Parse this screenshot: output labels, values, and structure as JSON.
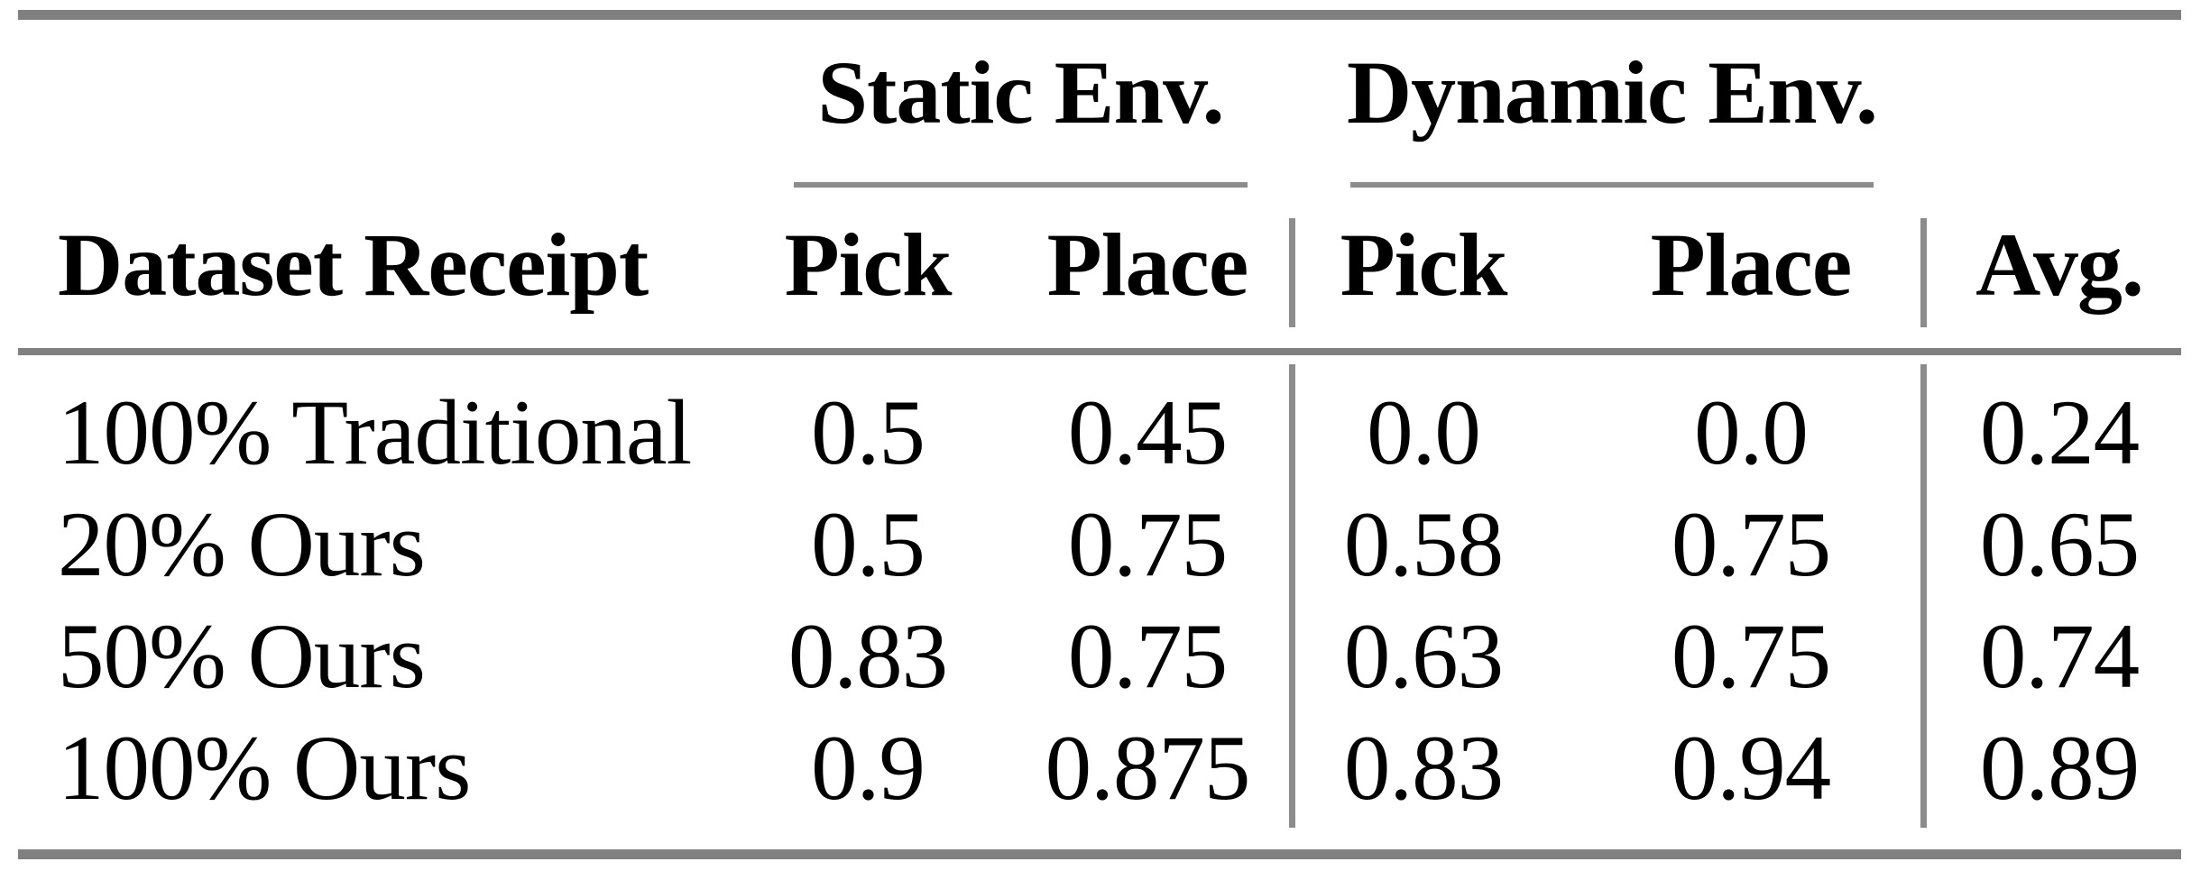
{
  "table": {
    "column_groups": [
      {
        "label": "Static Env."
      },
      {
        "label": "Dynamic Env."
      }
    ],
    "headers": {
      "dataset": "Dataset Receipt",
      "static_pick": "Pick",
      "static_place": "Place",
      "dynamic_pick": "Pick",
      "dynamic_place": "Place",
      "avg": "Avg."
    },
    "rows": [
      {
        "label": "100% Traditional",
        "static_pick": "0.5",
        "static_place": "0.45",
        "dynamic_pick": "0.0",
        "dynamic_place": "0.0",
        "avg": "0.24"
      },
      {
        "label": "20% Ours",
        "static_pick": "0.5",
        "static_place": "0.75",
        "dynamic_pick": "0.58",
        "dynamic_place": "0.75",
        "avg": "0.65"
      },
      {
        "label": "50% Ours",
        "static_pick": "0.83",
        "static_place": "0.75",
        "dynamic_pick": "0.63",
        "dynamic_place": "0.75",
        "avg": "0.74"
      },
      {
        "label": "100% Ours",
        "static_pick": "0.9",
        "static_place": "0.875",
        "dynamic_pick": "0.83",
        "dynamic_place": "0.94",
        "avg": "0.89"
      }
    ],
    "colors": {
      "rule_gray": "#808080",
      "text": "#000000",
      "background": "#ffffff"
    }
  },
  "chart_data": {
    "type": "table",
    "title": "",
    "column_groups": [
      "Static Env.",
      "Dynamic Env."
    ],
    "columns": [
      "Dataset Receipt",
      "Static Env. Pick",
      "Static Env. Place",
      "Dynamic Env. Pick",
      "Dynamic Env. Place",
      "Avg."
    ],
    "rows": [
      [
        "100% Traditional",
        0.5,
        0.45,
        0.0,
        0.0,
        0.24
      ],
      [
        "20% Ours",
        0.5,
        0.75,
        0.58,
        0.75,
        0.65
      ],
      [
        "50% Ours",
        0.83,
        0.75,
        0.63,
        0.75,
        0.74
      ],
      [
        "100% Ours",
        0.9,
        0.875,
        0.83,
        0.94,
        0.89
      ]
    ],
    "layout": {
      "grid": false,
      "rules": "horizontal booktabs + two vertical group separators"
    }
  }
}
